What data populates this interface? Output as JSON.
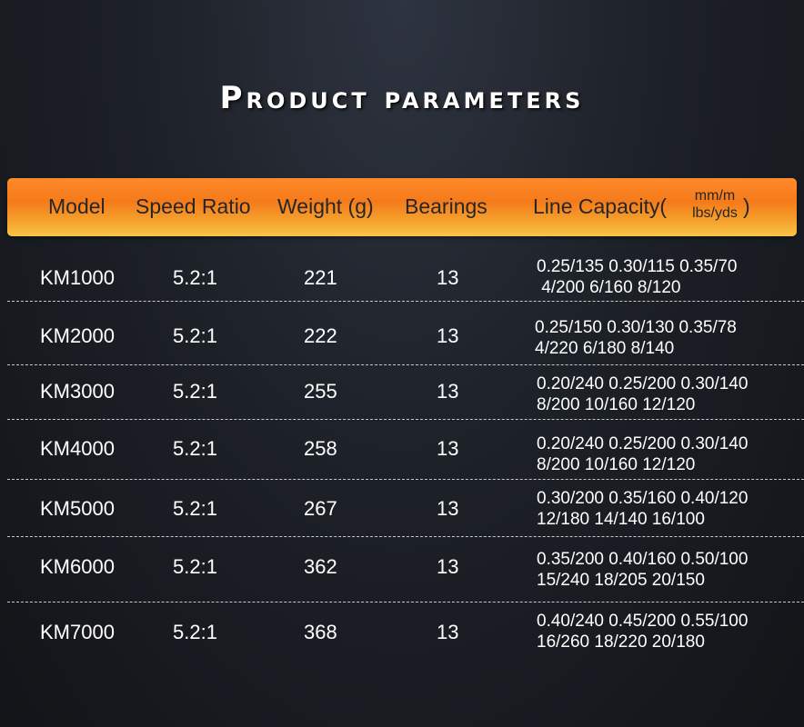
{
  "title": "Product parameters",
  "colors": {
    "header_accent": "#f57a1a",
    "background": "#1d2128"
  },
  "table": {
    "columns": [
      "Model",
      "Speed Ratio",
      "Weight (g)",
      "Bearings",
      "Line Capacity("
    ],
    "unit_top": "mm/m",
    "unit_bottom": "lbs/yds",
    "unit_close": ")",
    "rows": [
      {
        "model": "KM1000",
        "ratio": "5.2:1",
        "weight": "221",
        "bearings": "13",
        "cap1": "0.25/135 0.30/115 0.35/70",
        "cap2": " 4/200 6/160 8/120"
      },
      {
        "model": "KM2000",
        "ratio": "5.2:1",
        "weight": "222",
        "bearings": "13",
        "cap1": "0.25/150 0.30/130 0.35/78",
        "cap2": "4/220 6/180 8/140"
      },
      {
        "model": "KM3000",
        "ratio": "5.2:1",
        "weight": "255",
        "bearings": "13",
        "cap1": "0.20/240 0.25/200 0.30/140",
        "cap2": "8/200 10/160 12/120"
      },
      {
        "model": "KM4000",
        "ratio": "5.2:1",
        "weight": "258",
        "bearings": "13",
        "cap1": "0.20/240 0.25/200 0.30/140",
        "cap2": "8/200 10/160 12/120"
      },
      {
        "model": "KM5000",
        "ratio": "5.2:1",
        "weight": "267",
        "bearings": "13",
        "cap1": "0.30/200 0.35/160 0.40/120",
        "cap2": "12/180 14/140 16/100"
      },
      {
        "model": "KM6000",
        "ratio": "5.2:1",
        "weight": "362",
        "bearings": "13",
        "cap1": "0.35/200 0.40/160 0.50/100",
        "cap2": "15/240 18/205 20/150"
      },
      {
        "model": "KM7000",
        "ratio": "5.2:1",
        "weight": "368",
        "bearings": "13",
        "cap1": "0.40/240 0.45/200 0.55/100",
        "cap2": "16/260 18/220 20/180"
      }
    ]
  }
}
